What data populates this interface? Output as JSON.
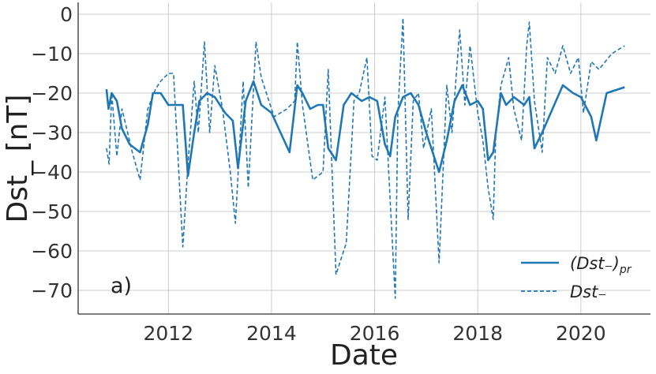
{
  "chart_data": {
    "type": "line",
    "panel_label": "a)",
    "xlabel": "Date",
    "ylabel": "Dst_ [nT]",
    "xlim": [
      2010.25,
      2021.35
    ],
    "ylim": [
      -76,
      3
    ],
    "xticks": [
      2012,
      2014,
      2016,
      2018,
      2020
    ],
    "xtick_labels": [
      "2012",
      "2014",
      "2016",
      "2018",
      "2020"
    ],
    "yticks": [
      0,
      -10,
      -20,
      -30,
      -40,
      -50,
      -60,
      -70
    ],
    "ytick_labels": [
      "0",
      "−10",
      "−20",
      "−30",
      "−40",
      "−50",
      "−60",
      "−70"
    ],
    "grid": true,
    "legend_position": "lower-right",
    "color": "#1f77b4",
    "series": [
      {
        "name": "(Dst₋)pr",
        "legend_main": "(Dst₋)",
        "legend_sub": "pr",
        "style": "solid",
        "x": [
          2010.8,
          2010.84,
          2010.9,
          2011.0,
          2011.1,
          2011.25,
          2011.45,
          2011.6,
          2011.7,
          2011.8,
          2011.85,
          2012.0,
          2012.1,
          2012.28,
          2012.38,
          2012.5,
          2012.6,
          2012.75,
          2012.9,
          2013.1,
          2013.25,
          2013.35,
          2013.5,
          2013.65,
          2013.8,
          2014.0,
          2014.35,
          2014.5,
          2014.6,
          2014.75,
          2014.9,
          2015.0,
          2015.1,
          2015.25,
          2015.4,
          2015.55,
          2015.75,
          2015.9,
          2016.05,
          2016.2,
          2016.3,
          2016.4,
          2016.55,
          2016.7,
          2016.85,
          2017.0,
          2017.25,
          2017.4,
          2017.55,
          2017.7,
          2017.85,
          2018.0,
          2018.1,
          2018.2,
          2018.3,
          2018.45,
          2018.55,
          2018.7,
          2018.9,
          2019.0,
          2019.1,
          2019.25,
          2019.45,
          2019.65,
          2019.85,
          2020.0,
          2020.2,
          2020.3,
          2020.5,
          2020.85
        ],
        "y": [
          -19,
          -24,
          -20,
          -22,
          -29,
          -33,
          -35,
          -28,
          -20,
          -20,
          -20,
          -23,
          -23,
          -23,
          -41,
          -30,
          -22,
          -20,
          -21,
          -25,
          -27,
          -39,
          -22,
          -17,
          -23,
          -25,
          -35,
          -18,
          -20,
          -24,
          -23,
          -23,
          -34,
          -37,
          -23,
          -20,
          -22,
          -21,
          -22,
          -33,
          -36,
          -26,
          -21,
          -20,
          -23,
          -30,
          -40,
          -32,
          -22,
          -18,
          -23,
          -22,
          -24,
          -37,
          -35,
          -20,
          -23,
          -21,
          -23,
          -21,
          -34,
          -30,
          -24,
          -18,
          -20,
          -21,
          -26,
          -32,
          -20,
          -18.5
        ]
      },
      {
        "name": "Dst₋",
        "legend_main": "Dst₋",
        "legend_sub": "",
        "style": "dashed",
        "x": [
          2010.8,
          2010.85,
          2010.9,
          2011.0,
          2011.1,
          2011.3,
          2011.45,
          2011.6,
          2011.75,
          2011.85,
          2012.0,
          2012.1,
          2012.28,
          2012.38,
          2012.5,
          2012.58,
          2012.7,
          2012.8,
          2012.9,
          2013.05,
          2013.2,
          2013.3,
          2013.45,
          2013.55,
          2013.7,
          2013.8,
          2014.05,
          2014.3,
          2014.45,
          2014.5,
          2014.6,
          2014.8,
          2015.0,
          2015.1,
          2015.25,
          2015.45,
          2015.6,
          2015.7,
          2015.85,
          2015.95,
          2016.05,
          2016.2,
          2016.3,
          2016.4,
          2016.45,
          2016.55,
          2016.65,
          2016.75,
          2016.85,
          2016.95,
          2017.1,
          2017.25,
          2017.4,
          2017.5,
          2017.65,
          2017.75,
          2017.85,
          2018.0,
          2018.1,
          2018.2,
          2018.3,
          2018.35,
          2018.45,
          2018.6,
          2018.7,
          2018.85,
          2018.95,
          2019.0,
          2019.1,
          2019.25,
          2019.35,
          2019.5,
          2019.65,
          2019.8,
          2019.95,
          2020.05,
          2020.2,
          2020.35,
          2020.6,
          2020.85
        ],
        "y": [
          -34,
          -38,
          -20,
          -36,
          -24,
          -35,
          -42,
          -24,
          -19,
          -17,
          -15,
          -15,
          -59,
          -38,
          -17,
          -30,
          -7,
          -30,
          -13,
          -24,
          -40,
          -53,
          -17,
          -44,
          -7,
          -16,
          -26,
          -24,
          -22,
          -7,
          -23,
          -42,
          -40,
          -14,
          -66,
          -58,
          -22,
          -20,
          -11,
          -36,
          -37,
          -21,
          -47,
          -72,
          -25,
          -1,
          -52,
          -22,
          -20,
          -34,
          -24,
          -63,
          -18,
          -30,
          -4,
          -23,
          -8,
          -25,
          -32,
          -44,
          -52,
          -30,
          -18,
          -11,
          -24,
          -32,
          -8,
          -2,
          -22,
          -35,
          -11,
          -15,
          -8,
          -15,
          -11,
          -25,
          -12,
          -14,
          -10,
          -8
        ]
      }
    ]
  }
}
